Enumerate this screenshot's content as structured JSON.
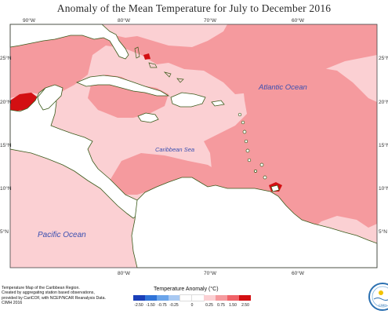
{
  "title": "Anomaly of the Mean Temperature for July to December 2016",
  "top_ticks": [
    "90°W",
    "80°W",
    "70°W",
    "60°W"
  ],
  "bottom_ticks": [
    "80°W",
    "70°W",
    "60°W"
  ],
  "left_ticks": [
    "25°N",
    "20°N",
    "15°N",
    "10°N",
    "5°N"
  ],
  "right_ticks": [
    "25°N",
    "20°N",
    "15°N",
    "10°N",
    "5°N"
  ],
  "ocean_labels": {
    "atlantic": "Atlantic Ocean",
    "caribbean": "Caribbean Sea",
    "pacific": "Pacific Ocean"
  },
  "credits": [
    "Temperature Map of the Caribbean Region.",
    "Created by aggregating station based observations,",
    "provided by CariCOF, with NCEP/NCAR Reanalysis Data.",
    "CIMH 2016"
  ],
  "legend": {
    "title": "Temperature Anomaly (°C)",
    "labels": [
      "-2.50",
      "-1.50",
      "-0.75",
      "-0.25",
      "0",
      "0.25",
      "0.75",
      "1.50",
      "2.50"
    ],
    "colors": [
      "#1a3fb8",
      "#2f73d8",
      "#6aa4ea",
      "#a9c9f2",
      "#ffffff",
      "#fbd0d3",
      "#f59a9e",
      "#f06268",
      "#d30f12"
    ]
  },
  "logo": {
    "label": "CIMH"
  },
  "map_colors": {
    "land": "#ffffff",
    "coast": "#3a5a1a",
    "light_pink": "#fbd0d3",
    "mid_pink": "#f59a9e",
    "red": "#f06268",
    "dark_red": "#d30f12"
  }
}
